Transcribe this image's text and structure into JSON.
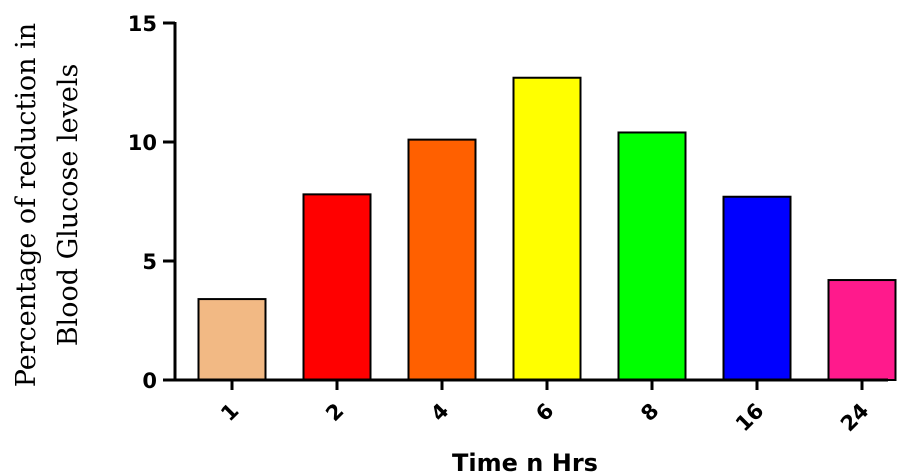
{
  "chart_data": {
    "type": "bar",
    "categories": [
      "1",
      "2",
      "4",
      "6",
      "8",
      "16",
      "24"
    ],
    "values": [
      3.4,
      7.8,
      10.1,
      12.7,
      10.4,
      7.7,
      4.2
    ],
    "colors": [
      "#f2b984",
      "#ff0000",
      "#ff6000",
      "#ffff00",
      "#00ff00",
      "#0000ff",
      "#ff1a8c"
    ],
    "xlabel": "Time n Hrs",
    "ylabel_lines": [
      "Percentage of reduction in",
      "Blood Glucose levels"
    ],
    "ylim": [
      0,
      15
    ],
    "yticks": [
      "0",
      "5",
      "10",
      "15"
    ],
    "grid": false,
    "x_tick_rotation_deg": -45
  }
}
